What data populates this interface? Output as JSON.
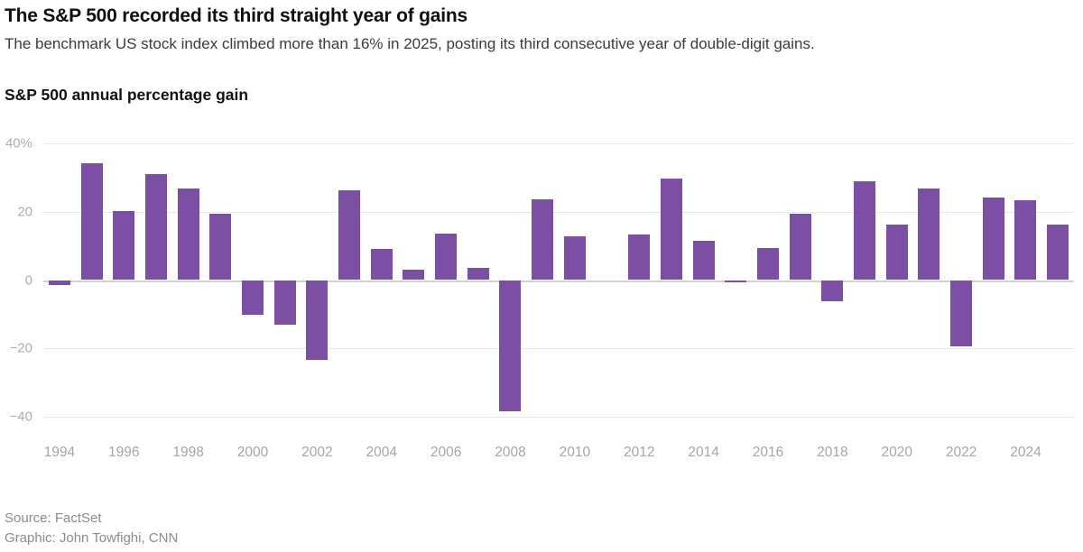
{
  "header": {
    "title": "The S&P 500 recorded its third straight year of gains",
    "subtitle": "The benchmark US stock index climbed more than 16% in 2025, posting its third consecutive year of double-digit gains."
  },
  "chart_data": {
    "type": "bar",
    "title": "S&P 500 annual percentage gain",
    "x": [
      1994,
      1995,
      1996,
      1997,
      1998,
      1999,
      2000,
      2001,
      2002,
      2003,
      2004,
      2005,
      2006,
      2007,
      2008,
      2009,
      2010,
      2011,
      2012,
      2013,
      2014,
      2015,
      2016,
      2017,
      2018,
      2019,
      2020,
      2021,
      2022,
      2023,
      2024,
      2025
    ],
    "values": [
      -1.5,
      34.1,
      20.3,
      31.0,
      26.7,
      19.5,
      -10.1,
      -13.0,
      -23.4,
      26.4,
      9.0,
      3.0,
      13.6,
      3.5,
      -38.5,
      23.5,
      12.8,
      0.0,
      13.4,
      29.6,
      11.4,
      -0.7,
      9.5,
      19.4,
      -6.2,
      28.9,
      16.3,
      26.9,
      -19.4,
      24.2,
      23.3,
      16.3
    ],
    "ylim": [
      -40,
      40
    ],
    "ytick_values": [
      40,
      20,
      0,
      -20,
      -40
    ],
    "ytick_labels": [
      "40%",
      "20",
      "0",
      "−20",
      "−40"
    ],
    "xtick_years": [
      1994,
      1996,
      1998,
      2000,
      2002,
      2004,
      2006,
      2008,
      2010,
      2012,
      2014,
      2016,
      2018,
      2020,
      2022,
      2024
    ],
    "bar_color": "#7c4fa5",
    "grid": "horizontal",
    "legend": "none"
  },
  "footer": {
    "source": "Source: FactSet",
    "credit": "Graphic: John Towfighi, CNN"
  }
}
